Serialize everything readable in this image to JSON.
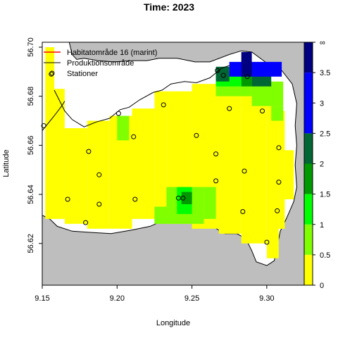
{
  "chart_data": {
    "type": "heatmap",
    "title": "Time: 2023",
    "xlabel": "Longitude",
    "ylabel": "Latitude",
    "xlim": [
      9.15,
      9.325
    ],
    "ylim": [
      56.603,
      56.702
    ],
    "x_ticks": [
      {
        "value": 9.15,
        "label": "9.15"
      },
      {
        "value": 9.2,
        "label": "9.20"
      },
      {
        "value": 9.25,
        "label": "9.25"
      },
      {
        "value": 9.3,
        "label": "9.30"
      }
    ],
    "y_ticks": [
      {
        "value": 56.62,
        "label": "56.62"
      },
      {
        "value": 56.64,
        "label": "56.64"
      },
      {
        "value": 56.66,
        "label": "56.66"
      },
      {
        "value": 56.68,
        "label": "56.68"
      },
      {
        "value": 56.7,
        "label": "56.70"
      }
    ],
    "legend": {
      "placement": "top-left",
      "entries": [
        {
          "label": "Habitatområde 16 (marint)",
          "symbol": "line",
          "color": "#ff0000"
        },
        {
          "label": "Produktionsområde",
          "symbol": "line",
          "color": "#000000"
        },
        {
          "label": "Stationer",
          "symbol": "circle",
          "color": "#000000"
        }
      ]
    },
    "colorbar": {
      "levels": [
        {
          "from": 0,
          "to": 0.5,
          "color": "#ffff00"
        },
        {
          "from": 0.5,
          "to": 1,
          "color": "#7fff00"
        },
        {
          "from": 1,
          "to": 1.5,
          "color": "#00ff00"
        },
        {
          "from": 1.5,
          "to": 2,
          "color": "#009900"
        },
        {
          "from": 2,
          "to": 2.5,
          "color": "#006633"
        },
        {
          "from": 2.5,
          "to": 3.5,
          "color": "#0000ff"
        },
        {
          "from": 3.5,
          "to": 4,
          "color": "#000080"
        }
      ],
      "tick_labels": [
        {
          "value": 0,
          "label": "0"
        },
        {
          "value": 0.5,
          "label": "0.5"
        },
        {
          "value": 1,
          "label": "1"
        },
        {
          "value": 1.5,
          "label": "1.5"
        },
        {
          "value": 2,
          "label": "2"
        },
        {
          "value": 2.5,
          "label": "2.5"
        },
        {
          "value": 3,
          "label": "3"
        },
        {
          "value": 3.5,
          "label": "3.5"
        },
        {
          "value": 4,
          "label": "∞"
        }
      ]
    },
    "cells": [
      {
        "lon": [
          9.152,
          9.158
        ],
        "lat": [
          56.63,
          56.7
        ],
        "value": 0.2
      },
      {
        "lon": [
          9.158,
          9.165
        ],
        "lat": [
          56.63,
          56.683
        ],
        "value": 0.2
      },
      {
        "lon": [
          9.165,
          9.18
        ],
        "lat": [
          56.628,
          56.667
        ],
        "value": 0.2
      },
      {
        "lon": [
          9.18,
          9.195
        ],
        "lat": [
          56.626,
          56.67
        ],
        "value": 0.2
      },
      {
        "lon": [
          9.195,
          9.21
        ],
        "lat": [
          56.626,
          56.672
        ],
        "value": 0.2
      },
      {
        "lon": [
          9.21,
          9.225
        ],
        "lat": [
          56.63,
          56.675
        ],
        "value": 0.2
      },
      {
        "lon": [
          9.225,
          9.233
        ],
        "lat": [
          56.63,
          56.682
        ],
        "value": 0.2
      },
      {
        "lon": [
          9.233,
          9.25
        ],
        "lat": [
          56.628,
          56.682
        ],
        "value": 0.2
      },
      {
        "lon": [
          9.25,
          9.268
        ],
        "lat": [
          56.626,
          56.685
        ],
        "value": 0.2
      },
      {
        "lon": [
          9.268,
          9.283
        ],
        "lat": [
          56.624,
          56.686
        ],
        "value": 0.2
      },
      {
        "lon": [
          9.283,
          9.3
        ],
        "lat": [
          56.62,
          56.684
        ],
        "value": 0.2
      },
      {
        "lon": [
          9.3,
          9.308
        ],
        "lat": [
          56.614,
          56.676
        ],
        "value": 0.2
      },
      {
        "lon": [
          9.308,
          9.312
        ],
        "lat": [
          56.626,
          56.674
        ],
        "value": 0.2
      },
      {
        "lon": [
          9.312,
          9.318
        ],
        "lat": [
          56.638,
          56.658
        ],
        "value": 0.2
      },
      {
        "lon": [
          9.208,
          9.213
        ],
        "lat": [
          56.668,
          56.672
        ],
        "value": 0.2
      },
      {
        "lon": [
          9.2,
          9.208
        ],
        "lat": [
          56.662,
          56.672
        ],
        "value": 0.7
      },
      {
        "lon": [
          9.233,
          9.258
        ],
        "lat": [
          56.628,
          56.643
        ],
        "value": 0.7
      },
      {
        "lon": [
          9.225,
          9.233
        ],
        "lat": [
          56.628,
          56.635
        ],
        "value": 0.7
      },
      {
        "lon": [
          9.258,
          9.266
        ],
        "lat": [
          56.63,
          56.643
        ],
        "value": 0.7
      },
      {
        "lon": [
          9.266,
          9.29
        ],
        "lat": [
          56.68,
          56.69
        ],
        "value": 0.7
      },
      {
        "lon": [
          9.29,
          9.311
        ],
        "lat": [
          56.676,
          56.686
        ],
        "value": 0.7
      },
      {
        "lon": [
          9.303,
          9.311
        ],
        "lat": [
          56.67,
          56.676
        ],
        "value": 0.7
      },
      {
        "lon": [
          9.24,
          9.25
        ],
        "lat": [
          56.632,
          56.643
        ],
        "value": 1.2
      },
      {
        "lon": [
          9.266,
          9.283
        ],
        "lat": [
          56.684,
          56.69
        ],
        "value": 1.2
      },
      {
        "lon": [
          9.243,
          9.25
        ],
        "lat": [
          56.636,
          56.641
        ],
        "value": 1.7
      },
      {
        "lon": [
          9.283,
          9.29
        ],
        "lat": [
          56.684,
          56.69
        ],
        "value": 1.7
      },
      {
        "lon": [
          9.29,
          9.303
        ],
        "lat": [
          56.684,
          56.69
        ],
        "value": 2.2
      },
      {
        "lon": [
          9.266,
          9.275
        ],
        "lat": [
          56.686,
          56.692
        ],
        "value": 2.2
      },
      {
        "lon": [
          9.275,
          9.31
        ],
        "lat": [
          56.688,
          56.694
        ],
        "value": 3.0
      },
      {
        "lon": [
          9.283,
          9.29
        ],
        "lat": [
          56.688,
          56.698
        ],
        "value": 3.8
      }
    ],
    "stations": [
      {
        "lon": 9.151,
        "lat": 56.668
      },
      {
        "lon": 9.156,
        "lat": 56.689
      },
      {
        "lon": 9.181,
        "lat": 56.6575
      },
      {
        "lon": 9.188,
        "lat": 56.648
      },
      {
        "lon": 9.167,
        "lat": 56.638
      },
      {
        "lon": 9.188,
        "lat": 56.636
      },
      {
        "lon": 9.179,
        "lat": 56.6285
      },
      {
        "lon": 9.201,
        "lat": 56.673
      },
      {
        "lon": 9.211,
        "lat": 56.6635
      },
      {
        "lon": 9.231,
        "lat": 56.6765
      },
      {
        "lon": 9.212,
        "lat": 56.638
      },
      {
        "lon": 9.241,
        "lat": 56.6385
      },
      {
        "lon": 9.244,
        "lat": 56.6385
      },
      {
        "lon": 9.253,
        "lat": 56.664
      },
      {
        "lon": 9.267,
        "lat": 56.6905
      },
      {
        "lon": 9.271,
        "lat": 56.6885
      },
      {
        "lon": 9.287,
        "lat": 56.688
      },
      {
        "lon": 9.275,
        "lat": 56.675
      },
      {
        "lon": 9.297,
        "lat": 56.674
      },
      {
        "lon": 9.266,
        "lat": 56.6565
      },
      {
        "lon": 9.266,
        "lat": 56.6455
      },
      {
        "lon": 9.285,
        "lat": 56.6495
      },
      {
        "lon": 9.308,
        "lat": 56.659
      },
      {
        "lon": 9.308,
        "lat": 56.645
      },
      {
        "lon": 9.284,
        "lat": 56.633
      },
      {
        "lon": 9.307,
        "lat": 56.6333
      },
      {
        "lon": 9.3,
        "lat": 56.6205
      }
    ],
    "coast_polygon": [
      [
        9.15,
        56.702
      ],
      [
        9.168,
        56.702
      ],
      [
        9.17,
        56.697
      ],
      [
        9.173,
        56.695
      ],
      [
        9.178,
        56.6955
      ],
      [
        9.187,
        56.6945
      ],
      [
        9.198,
        56.694
      ],
      [
        9.21,
        56.6945
      ],
      [
        9.22,
        56.6945
      ],
      [
        9.228,
        56.6955
      ],
      [
        9.24,
        56.6955
      ],
      [
        9.252,
        56.694
      ],
      [
        9.262,
        56.694
      ],
      [
        9.275,
        56.697
      ],
      [
        9.283,
        56.6985
      ],
      [
        9.29,
        56.698
      ],
      [
        9.3,
        56.6935
      ],
      [
        9.31,
        56.6905
      ],
      [
        9.317,
        56.685
      ],
      [
        9.32,
        56.677
      ],
      [
        9.319,
        56.668
      ],
      [
        9.32,
        56.66
      ],
      [
        9.319,
        56.652
      ],
      [
        9.32,
        56.643
      ],
      [
        9.318,
        56.637
      ],
      [
        9.313,
        56.63
      ],
      [
        9.309,
        56.625
      ],
      [
        9.307,
        56.619
      ],
      [
        9.305,
        56.613
      ],
      [
        9.3,
        56.611
      ],
      [
        9.293,
        56.6125
      ],
      [
        9.29,
        56.617
      ],
      [
        9.286,
        56.622
      ],
      [
        9.28,
        56.624
      ],
      [
        9.272,
        56.624
      ],
      [
        9.265,
        56.6265
      ],
      [
        9.255,
        56.6285
      ],
      [
        9.245,
        56.629
      ],
      [
        9.235,
        56.6305
      ],
      [
        9.222,
        56.627
      ],
      [
        9.21,
        56.6255
      ],
      [
        9.196,
        56.624
      ],
      [
        9.183,
        56.6245
      ],
      [
        9.17,
        56.625
      ],
      [
        9.16,
        56.627
      ],
      [
        9.155,
        56.63
      ],
      [
        9.15,
        56.6315
      ]
    ],
    "inner_coast": [
      [
        9.158,
        56.6825
      ],
      [
        9.165,
        56.674
      ],
      [
        9.17,
        56.6705
      ],
      [
        9.178,
        56.6675
      ],
      [
        9.186,
        56.6695
      ],
      [
        9.195,
        56.671
      ],
      [
        9.202,
        56.6745
      ],
      [
        9.208,
        56.6755
      ],
      [
        9.215,
        56.6785
      ],
      [
        9.224,
        56.6815
      ],
      [
        9.23,
        56.6825
      ],
      [
        9.236,
        56.685
      ],
      [
        9.245,
        56.686
      ],
      [
        9.253,
        56.6855
      ],
      [
        9.262,
        56.6875
      ],
      [
        9.27,
        56.6915
      ],
      [
        9.275,
        56.6925
      ]
    ],
    "production_line": [
      [
        9.15,
        56.666
      ],
      [
        9.158,
        56.672
      ],
      [
        9.163,
        56.676
      ],
      [
        9.165,
        56.678
      ]
    ]
  }
}
